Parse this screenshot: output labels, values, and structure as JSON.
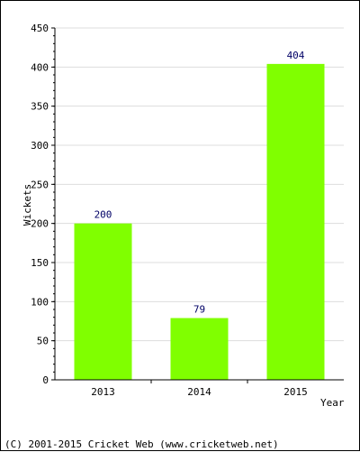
{
  "chart_data": {
    "type": "bar",
    "categories": [
      "2013",
      "2014",
      "2015"
    ],
    "values": [
      200,
      79,
      404
    ],
    "data_labels": [
      "200",
      "79",
      "404"
    ],
    "xlabel": "Year",
    "ylabel": "Wickets",
    "ylim": [
      0,
      450
    ],
    "yticks": [
      "0",
      "50",
      "100",
      "150",
      "200",
      "250",
      "300",
      "350",
      "400",
      "450"
    ],
    "grid": true,
    "bar_color": "#80ff00"
  },
  "footer": {
    "copyright": "(C) 2001-2015 Cricket Web (www.cricketweb.net)"
  }
}
